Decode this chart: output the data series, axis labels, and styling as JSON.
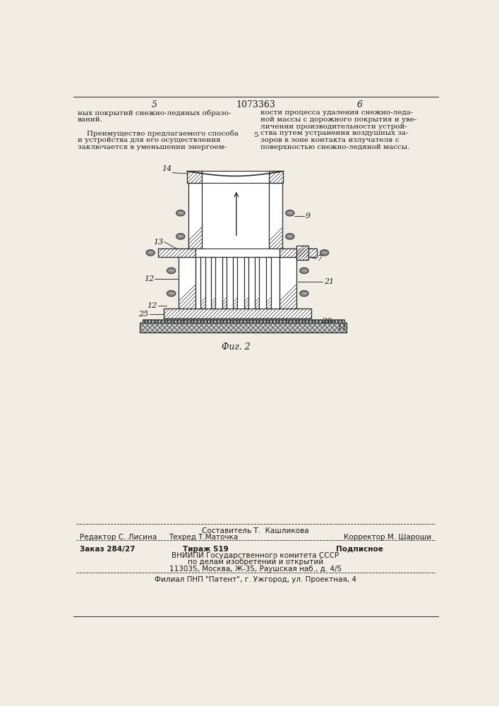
{
  "bg_color": "#f2ede4",
  "page_bg": "#f2ede4",
  "page_number_left": "5",
  "patent_number": "1073363",
  "page_number_right": "6",
  "top_text_left_line1": "ных покрытий снежно-ледяных образо-",
  "top_text_left_line2": "ваний.",
  "top_text_left_line3": "    Преимущество предлагаемого способа",
  "top_text_left_line4": "и устройства для его осуществления",
  "top_text_left_line5": "заключается в уменьшении энергоем-",
  "line5_label": "5",
  "top_text_right_line1": "кости процесса удаления снежно-леда-",
  "top_text_right_line2": "ной массы с дорожного покрытия и уве-",
  "top_text_right_line3": "личении производительности устрой-",
  "top_text_right_line4": "ства путем устранения воздушных за-",
  "top_text_right_line5": "зоров в зоне контакта излучателя с",
  "top_text_right_line6": "поверхностью снежно-ледяной массы.",
  "fig_caption": "Фиг. 2",
  "footer_line1_center": "Составитель Т.  Кашликова",
  "footer_line1_left": "Редактор С. Лисина",
  "footer_line1_mid": "Техред Т.Маточка",
  "footer_line1_right": "Корректор М. Шароши",
  "footer_line2_left": "Заказ 284/27",
  "footer_line2_mid": "Тираж 519",
  "footer_line2_right": "Подписное",
  "footer_line3": "ВНИИПИ Государственного комитета СССР",
  "footer_line4": "по делам изобретений и открытий",
  "footer_line5": "113035, Москва, Ж-35, Раушская наб., д. 4/5",
  "footer_line6": "Филиал ПНП \"Патент\", г. Ужгород, ул. Проектная, 4",
  "text_color": "#1a1a1a",
  "line_color": "#2a2a2a",
  "hatch_color": "#2a2a2a"
}
